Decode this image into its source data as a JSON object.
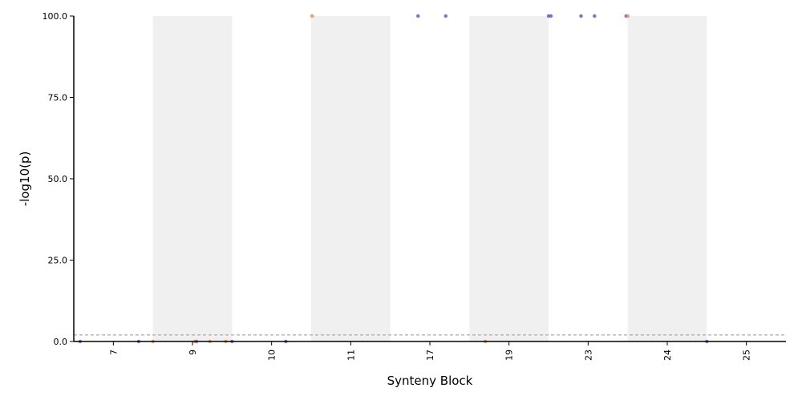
{
  "chart_data": {
    "type": "scatter",
    "title": "",
    "xlabel": "Synteny Block",
    "ylabel": "-log10(p)",
    "ylim": [
      0,
      100
    ],
    "yticks": [
      "0.0",
      "25.0",
      "50.0",
      "75.0",
      "100.0"
    ],
    "categories": [
      "7",
      "9",
      "10",
      "11",
      "17",
      "19",
      "23",
      "24",
      "25"
    ],
    "shaded_bands": [
      1,
      3,
      5,
      7
    ],
    "threshold": 2,
    "grid": false,
    "legend": "none",
    "colors": {
      "blue": "#5b5bd6",
      "orange": "#f28c3a",
      "band": "#f0f0f0",
      "threshold": "#999999"
    },
    "series": [
      {
        "color": "blue",
        "points": [
          {
            "x": 7,
            "offset": -0.42,
            "y": 0
          },
          {
            "x": 7,
            "offset": 0.32,
            "y": 0
          },
          {
            "x": 9,
            "offset": 0.05,
            "y": 0
          },
          {
            "x": 9,
            "offset": 0.5,
            "y": 0
          },
          {
            "x": 10,
            "offset": 0.18,
            "y": 0
          },
          {
            "x": 17,
            "offset": -0.15,
            "y": 100
          },
          {
            "x": 17,
            "offset": 0.2,
            "y": 100
          },
          {
            "x": 19,
            "offset": 0.5,
            "y": 100
          },
          {
            "x": 19,
            "offset": 0.53,
            "y": 100
          },
          {
            "x": 23,
            "offset": -0.09,
            "y": 100
          },
          {
            "x": 23,
            "offset": 0.08,
            "y": 100
          },
          {
            "x": 24,
            "offset": -0.52,
            "y": 100
          },
          {
            "x": 24,
            "offset": 0.5,
            "y": 0
          }
        ]
      },
      {
        "color": "orange",
        "points": [
          {
            "x": 7,
            "offset": 0.5,
            "y": 0
          },
          {
            "x": 9,
            "offset": 0.03,
            "y": 0
          },
          {
            "x": 9,
            "offset": 0.22,
            "y": 0
          },
          {
            "x": 9,
            "offset": 0.42,
            "y": 0
          },
          {
            "x": 11,
            "offset": -0.49,
            "y": 100
          },
          {
            "x": 19,
            "offset": -0.3,
            "y": 0
          },
          {
            "x": 24,
            "offset": -0.5,
            "y": 100
          }
        ]
      }
    ]
  }
}
